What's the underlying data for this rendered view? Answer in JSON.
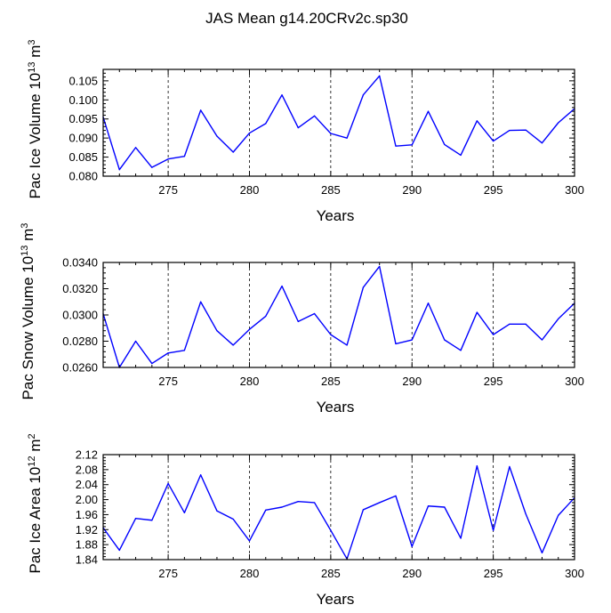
{
  "title": "JAS Mean g14.20CRv2c.sp30",
  "line_color": "#0000ff",
  "chart_data": [
    {
      "type": "line",
      "ylabel": "Pac Ice Volume 10^13 m^3",
      "ylabel_parts": {
        "base": "Pac Ice Volume 10",
        "exp": "13",
        "unit": " m",
        "unit_exp": "3"
      },
      "xlabel": "Years",
      "xlim": [
        271,
        300
      ],
      "ylim": [
        0.08,
        0.108
      ],
      "yticks": [
        0.08,
        0.085,
        0.09,
        0.095,
        0.1,
        0.105
      ],
      "ytick_labels": [
        "0.080",
        "0.085",
        "0.090",
        "0.095",
        "0.100",
        "0.105"
      ],
      "xticks": [
        275,
        280,
        285,
        290,
        295,
        300
      ],
      "xtick_labels": [
        "275",
        "280",
        "285",
        "290",
        "295",
        "300"
      ],
      "x": [
        271,
        272,
        273,
        274,
        275,
        276,
        277,
        278,
        279,
        280,
        281,
        282,
        283,
        284,
        285,
        286,
        287,
        288,
        289,
        290,
        291,
        292,
        293,
        294,
        295,
        296,
        297,
        298,
        299,
        300
      ],
      "values": [
        0.0955,
        0.0817,
        0.0875,
        0.0823,
        0.0845,
        0.0852,
        0.0973,
        0.0905,
        0.0863,
        0.0913,
        0.0938,
        0.1013,
        0.0927,
        0.0958,
        0.0912,
        0.09,
        0.1013,
        0.1063,
        0.0879,
        0.0882,
        0.097,
        0.0883,
        0.0855,
        0.0945,
        0.0892,
        0.092,
        0.0921,
        0.0887,
        0.094,
        0.0977
      ]
    },
    {
      "type": "line",
      "ylabel": "Pac Snow Volume 10^13 m^3",
      "ylabel_parts": {
        "base": "Pac Snow Volume 10",
        "exp": "13",
        "unit": " m",
        "unit_exp": "3"
      },
      "xlabel": "Years",
      "xlim": [
        271,
        300
      ],
      "ylim": [
        0.026,
        0.034
      ],
      "yticks": [
        0.026,
        0.028,
        0.03,
        0.032,
        0.034
      ],
      "ytick_labels": [
        "0.0260",
        "0.0280",
        "0.0300",
        "0.0320",
        "0.0340"
      ],
      "xticks": [
        275,
        280,
        285,
        290,
        295,
        300
      ],
      "xtick_labels": [
        "275",
        "280",
        "285",
        "290",
        "295",
        "300"
      ],
      "x": [
        271,
        272,
        273,
        274,
        275,
        276,
        277,
        278,
        279,
        280,
        281,
        282,
        283,
        284,
        285,
        286,
        287,
        288,
        289,
        290,
        291,
        292,
        293,
        294,
        295,
        296,
        297,
        298,
        299,
        300
      ],
      "values": [
        0.0301,
        0.026,
        0.028,
        0.0263,
        0.0271,
        0.0273,
        0.031,
        0.0288,
        0.0277,
        0.0289,
        0.0299,
        0.0322,
        0.0295,
        0.0301,
        0.0285,
        0.0277,
        0.0321,
        0.0337,
        0.0278,
        0.0281,
        0.0309,
        0.0281,
        0.0273,
        0.0302,
        0.0285,
        0.0293,
        0.0293,
        0.0281,
        0.0297,
        0.0309
      ]
    },
    {
      "type": "line",
      "ylabel": "Pac Ice Area 10^12 m^2",
      "ylabel_parts": {
        "base": "Pac Ice Area 10",
        "exp": "12",
        "unit": " m",
        "unit_exp": "2"
      },
      "xlabel": "Years",
      "xlim": [
        271,
        300
      ],
      "ylim": [
        1.84,
        2.12
      ],
      "yticks": [
        1.84,
        1.88,
        1.92,
        1.96,
        2.0,
        2.04,
        2.08,
        2.12
      ],
      "ytick_labels": [
        "1.84",
        "1.88",
        "1.92",
        "1.96",
        "2.00",
        "2.04",
        "2.08",
        "2.12"
      ],
      "xticks": [
        275,
        280,
        285,
        290,
        295,
        300
      ],
      "xtick_labels": [
        "275",
        "280",
        "285",
        "290",
        "295",
        "300"
      ],
      "x": [
        271,
        272,
        273,
        274,
        275,
        276,
        277,
        278,
        279,
        280,
        281,
        282,
        283,
        284,
        285,
        286,
        287,
        288,
        289,
        290,
        291,
        292,
        293,
        294,
        295,
        296,
        297,
        298,
        299,
        300
      ],
      "values": [
        1.925,
        1.865,
        1.95,
        1.945,
        2.043,
        1.965,
        2.066,
        1.97,
        1.948,
        1.89,
        1.972,
        1.98,
        1.995,
        1.992,
        1.918,
        1.842,
        1.973,
        1.992,
        2.01,
        1.875,
        1.983,
        1.98,
        1.897,
        2.09,
        1.918,
        2.088,
        1.962,
        1.858,
        1.958,
        2.005
      ]
    }
  ]
}
